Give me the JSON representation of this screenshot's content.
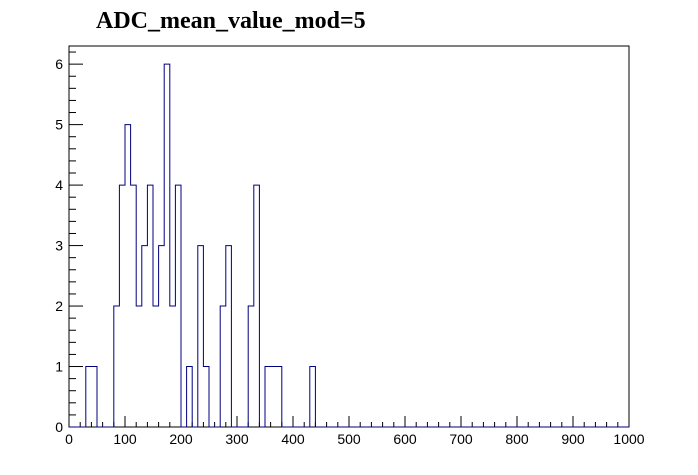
{
  "chart_data": {
    "type": "bar",
    "title": "ADC_mean_value_mod=5",
    "xlabel": "",
    "ylabel": "",
    "xlim": [
      0,
      1000
    ],
    "ylim": [
      0,
      6.3
    ],
    "bin_width": 10,
    "x_ticks": [
      0,
      100,
      200,
      300,
      400,
      500,
      600,
      700,
      800,
      900,
      1000
    ],
    "y_ticks": [
      0,
      1,
      2,
      3,
      4,
      5,
      6
    ],
    "grid": false,
    "line_color": "#000080",
    "bins": [
      {
        "x": 30,
        "value": 1
      },
      {
        "x": 40,
        "value": 1
      },
      {
        "x": 80,
        "value": 2
      },
      {
        "x": 90,
        "value": 4
      },
      {
        "x": 100,
        "value": 5
      },
      {
        "x": 110,
        "value": 4
      },
      {
        "x": 120,
        "value": 2
      },
      {
        "x": 130,
        "value": 3
      },
      {
        "x": 140,
        "value": 4
      },
      {
        "x": 150,
        "value": 2
      },
      {
        "x": 160,
        "value": 3
      },
      {
        "x": 170,
        "value": 6
      },
      {
        "x": 180,
        "value": 2
      },
      {
        "x": 190,
        "value": 4
      },
      {
        "x": 210,
        "value": 1
      },
      {
        "x": 230,
        "value": 3
      },
      {
        "x": 240,
        "value": 1
      },
      {
        "x": 270,
        "value": 2
      },
      {
        "x": 280,
        "value": 3
      },
      {
        "x": 320,
        "value": 2
      },
      {
        "x": 330,
        "value": 4
      },
      {
        "x": 350,
        "value": 1
      },
      {
        "x": 360,
        "value": 1
      },
      {
        "x": 370,
        "value": 1
      },
      {
        "x": 430,
        "value": 1
      }
    ]
  }
}
